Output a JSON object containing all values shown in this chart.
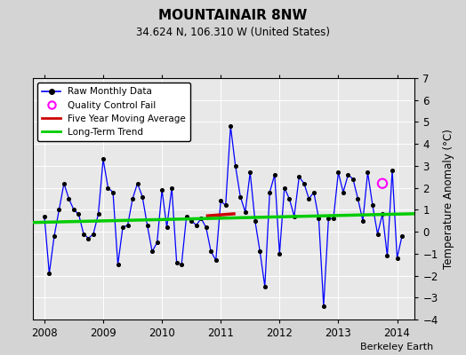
{
  "title": "MOUNTAINAIR 8NW",
  "subtitle": "34.624 N, 106.310 W (United States)",
  "ylabel": "Temperature Anomaly (°C)",
  "footer": "Berkeley Earth",
  "ylim": [
    -4,
    7
  ],
  "yticks": [
    -4,
    -3,
    -2,
    -1,
    0,
    1,
    2,
    3,
    4,
    5,
    6,
    7
  ],
  "xlim": [
    2007.8,
    2014.3
  ],
  "xticks": [
    2008,
    2009,
    2010,
    2011,
    2012,
    2013,
    2014
  ],
  "bg_color": "#d4d4d4",
  "plot_bg_color": "#e8e8e8",
  "raw_monthly": {
    "x": [
      2008.0,
      2008.083,
      2008.167,
      2008.25,
      2008.333,
      2008.417,
      2008.5,
      2008.583,
      2008.667,
      2008.75,
      2008.833,
      2008.917,
      2009.0,
      2009.083,
      2009.167,
      2009.25,
      2009.333,
      2009.417,
      2009.5,
      2009.583,
      2009.667,
      2009.75,
      2009.833,
      2009.917,
      2010.0,
      2010.083,
      2010.167,
      2010.25,
      2010.333,
      2010.417,
      2010.5,
      2010.583,
      2010.667,
      2010.75,
      2010.833,
      2010.917,
      2011.0,
      2011.083,
      2011.167,
      2011.25,
      2011.333,
      2011.417,
      2011.5,
      2011.583,
      2011.667,
      2011.75,
      2011.833,
      2011.917,
      2012.0,
      2012.083,
      2012.167,
      2012.25,
      2012.333,
      2012.417,
      2012.5,
      2012.583,
      2012.667,
      2012.75,
      2012.833,
      2012.917,
      2013.0,
      2013.083,
      2013.167,
      2013.25,
      2013.333,
      2013.417,
      2013.5,
      2013.583,
      2013.667,
      2013.75,
      2013.833,
      2013.917,
      2014.0,
      2014.083
    ],
    "y": [
      0.7,
      -1.9,
      -0.2,
      1.0,
      2.2,
      1.5,
      1.0,
      0.8,
      -0.1,
      -0.3,
      -0.1,
      0.8,
      3.3,
      2.0,
      1.8,
      -1.5,
      0.2,
      0.3,
      1.5,
      2.2,
      1.6,
      0.3,
      -0.9,
      -0.5,
      1.9,
      0.2,
      2.0,
      -1.4,
      -1.5,
      0.7,
      0.5,
      0.3,
      0.6,
      0.2,
      -0.9,
      -1.3,
      1.4,
      1.2,
      4.8,
      3.0,
      1.6,
      0.9,
      2.7,
      0.5,
      -0.9,
      -2.5,
      1.8,
      2.6,
      -1.0,
      2.0,
      1.5,
      0.7,
      2.5,
      2.2,
      1.5,
      1.8,
      0.6,
      -3.4,
      0.6,
      0.6,
      2.7,
      1.8,
      2.6,
      2.4,
      1.5,
      0.5,
      2.7,
      1.2,
      -0.1,
      0.8,
      -1.1,
      2.8,
      -1.2,
      -0.2
    ]
  },
  "five_year_ma": {
    "x": [
      2010.75,
      2011.25
    ],
    "y": [
      0.72,
      0.82
    ]
  },
  "long_term_trend": {
    "x": [
      2007.8,
      2014.3
    ],
    "y": [
      0.42,
      0.82
    ]
  },
  "qc_fail": {
    "x": [
      2013.75
    ],
    "y": [
      2.2
    ]
  },
  "raw_color": "#0000ff",
  "ma_color": "#cc0000",
  "trend_color": "#00cc00",
  "qc_color": "#ff00ff",
  "dot_color": "#000000"
}
